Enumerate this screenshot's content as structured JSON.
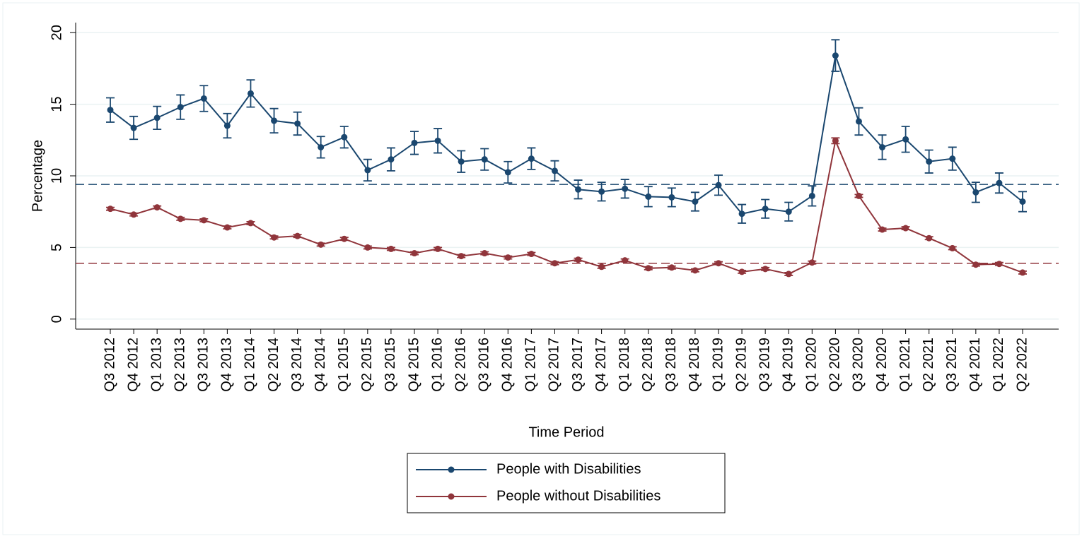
{
  "chart_data": {
    "type": "line",
    "x_label": "Time Period",
    "y_label": "Percentage",
    "categories": [
      "Q3 2012",
      "Q4 2012",
      "Q1 2013",
      "Q2 2013",
      "Q3 2013",
      "Q4 2013",
      "Q1 2014",
      "Q2 2014",
      "Q3 2014",
      "Q4 2014",
      "Q1 2015",
      "Q2 2015",
      "Q3 2015",
      "Q4 2015",
      "Q1 2016",
      "Q2 2016",
      "Q3 2016",
      "Q4 2016",
      "Q1 2017",
      "Q2 2017",
      "Q3 2017",
      "Q4 2017",
      "Q1 2018",
      "Q2 2018",
      "Q3 2018",
      "Q4 2018",
      "Q1 2019",
      "Q2 2019",
      "Q3 2019",
      "Q4 2019",
      "Q1 2020",
      "Q2 2020",
      "Q3 2020",
      "Q4 2020",
      "Q1 2021",
      "Q2 2021",
      "Q3 2021",
      "Q4 2021",
      "Q1 2022",
      "Q2 2022"
    ],
    "series": [
      {
        "name": "People with Disabilities",
        "color": "#1a476f",
        "values": [
          14.6,
          13.35,
          14.05,
          14.8,
          15.4,
          13.5,
          15.75,
          13.85,
          13.65,
          12.0,
          12.7,
          10.4,
          11.15,
          12.3,
          12.45,
          11.0,
          11.15,
          10.25,
          11.2,
          10.35,
          9.05,
          8.9,
          9.1,
          8.55,
          8.5,
          8.2,
          9.35,
          7.35,
          7.7,
          7.5,
          8.6,
          18.4,
          13.8,
          12.0,
          12.55,
          11.0,
          11.2,
          8.85,
          9.5,
          8.2
        ],
        "errors": [
          0.85,
          0.8,
          0.8,
          0.85,
          0.9,
          0.85,
          0.95,
          0.85,
          0.8,
          0.75,
          0.75,
          0.75,
          0.8,
          0.8,
          0.85,
          0.75,
          0.75,
          0.75,
          0.75,
          0.7,
          0.65,
          0.65,
          0.65,
          0.7,
          0.65,
          0.65,
          0.7,
          0.65,
          0.65,
          0.65,
          0.7,
          1.1,
          0.95,
          0.85,
          0.9,
          0.8,
          0.8,
          0.7,
          0.7,
          0.7
        ]
      },
      {
        "name": "People without Disabilities",
        "color": "#90353b",
        "values": [
          7.7,
          7.3,
          7.8,
          7.0,
          6.9,
          6.4,
          6.7,
          5.7,
          5.8,
          5.2,
          5.6,
          5.0,
          4.9,
          4.6,
          4.9,
          4.4,
          4.6,
          4.3,
          4.55,
          3.9,
          4.15,
          3.65,
          4.1,
          3.55,
          3.6,
          3.4,
          3.9,
          3.3,
          3.5,
          3.15,
          3.95,
          12.45,
          8.6,
          6.25,
          6.35,
          5.65,
          4.95,
          3.8,
          3.85,
          3.25
        ],
        "errors": [
          0.1,
          0.1,
          0.1,
          0.1,
          0.1,
          0.1,
          0.1,
          0.1,
          0.1,
          0.1,
          0.1,
          0.1,
          0.1,
          0.1,
          0.1,
          0.1,
          0.1,
          0.1,
          0.1,
          0.1,
          0.1,
          0.1,
          0.1,
          0.1,
          0.1,
          0.1,
          0.1,
          0.1,
          0.1,
          0.1,
          0.1,
          0.2,
          0.1,
          0.1,
          0.1,
          0.1,
          0.1,
          0.1,
          0.1,
          0.1
        ]
      }
    ],
    "reference_lines": [
      {
        "value": 9.4,
        "color": "#1a476f"
      },
      {
        "value": 3.9,
        "color": "#90353b"
      }
    ],
    "ylim": [
      -0.7,
      20.7
    ],
    "yticks": [
      0,
      5,
      10,
      15,
      20
    ],
    "grid": true,
    "legend": "bottom"
  }
}
